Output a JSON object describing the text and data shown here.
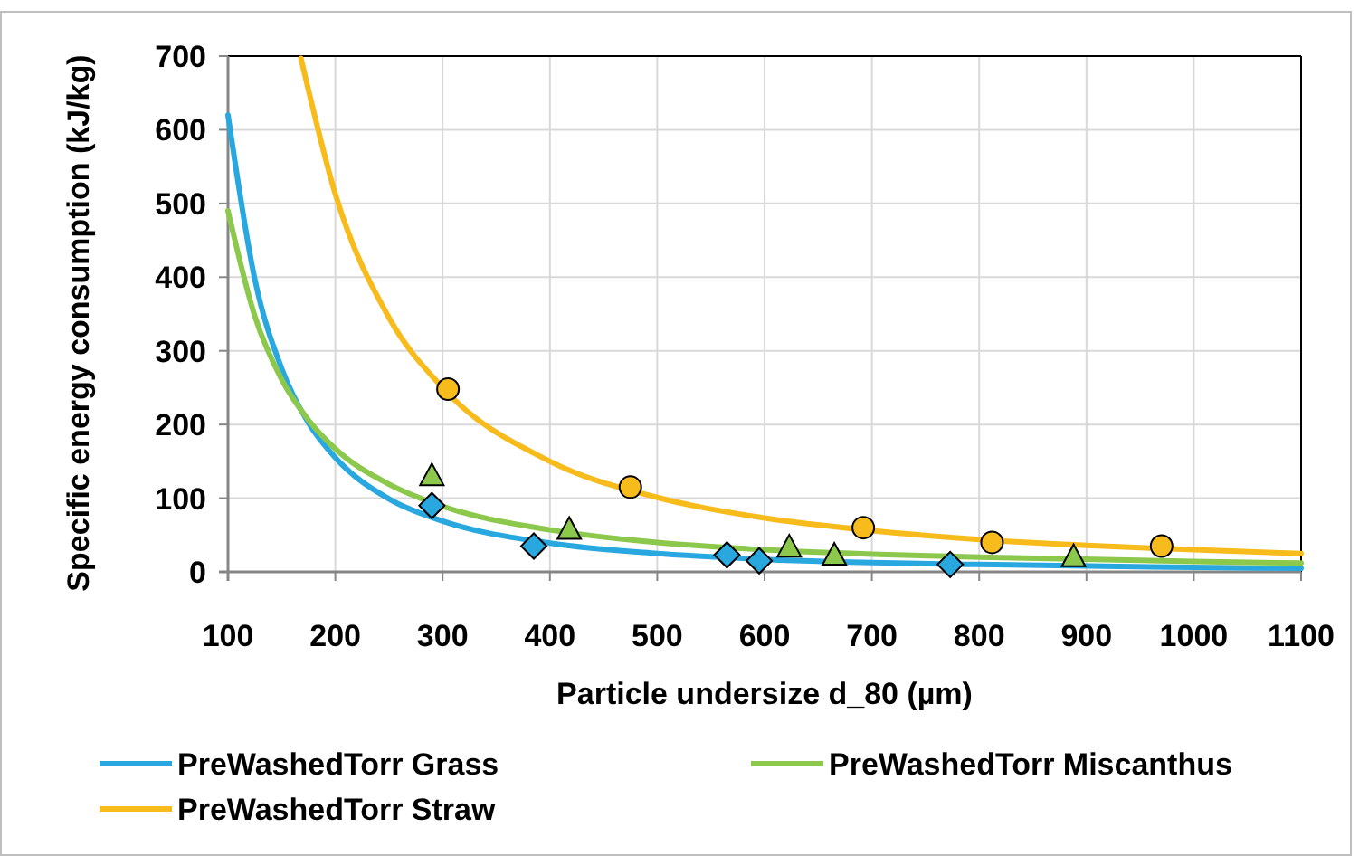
{
  "chart_data": {
    "type": "line",
    "xlabel": "Particle undersize d_80 (µm)",
    "ylabel": "Specific energy consumption (kJ/kg)",
    "xlim": [
      100,
      1100
    ],
    "xticks": [
      100,
      200,
      300,
      400,
      500,
      600,
      700,
      800,
      900,
      1000,
      1100
    ],
    "ylim": [
      0,
      700
    ],
    "yticks": [
      0,
      100,
      200,
      300,
      400,
      500,
      600,
      700
    ],
    "grid": true,
    "legend": "bottom",
    "series": [
      {
        "name": "PreWashedTorr Grass",
        "color": "#29a8e0",
        "marker": "none",
        "x": [
          100,
          125,
          150,
          175,
          200,
          250,
          300,
          400,
          500,
          600,
          800,
          1000,
          1100
        ],
        "values": [
          620,
          397,
          276,
          202,
          155,
          99,
          69,
          39,
          25,
          17,
          10,
          6,
          5
        ]
      },
      {
        "name": "PreWashedTorr Miscanthus",
        "color": "#8cc84b",
        "marker": "none",
        "x": [
          100,
          125,
          150,
          175,
          200,
          250,
          300,
          400,
          500,
          600,
          800,
          1000,
          1100
        ],
        "values": [
          490,
          347,
          261,
          206,
          167,
          119,
          89,
          57,
          40,
          30,
          20,
          14,
          12
        ]
      },
      {
        "name": "PreWashedTorr Straw",
        "color": "#f8bb1c",
        "marker": "none",
        "x": [
          168,
          200,
          250,
          300,
          400,
          500,
          600,
          700,
          800,
          900,
          1000,
          1100
        ],
        "values": [
          697,
          513,
          345,
          250,
          150,
          101,
          73,
          56,
          44,
          36,
          30,
          25
        ]
      },
      {
        "type": "scatter",
        "color": "#29a8e0",
        "marker": "diamond",
        "x": [
          290,
          385,
          565,
          595,
          773
        ],
        "values": [
          90,
          35,
          23,
          15,
          10
        ]
      },
      {
        "type": "scatter",
        "color": "#8cc84b",
        "marker": "triangle",
        "x": [
          290,
          418,
          623,
          665,
          888
        ],
        "values": [
          130,
          57,
          33,
          22,
          20
        ]
      },
      {
        "type": "scatter",
        "color": "#f8bb1c",
        "marker": "circle",
        "x": [
          305,
          475,
          692,
          812,
          970
        ],
        "values": [
          248,
          115,
          60,
          40,
          35
        ]
      }
    ]
  }
}
